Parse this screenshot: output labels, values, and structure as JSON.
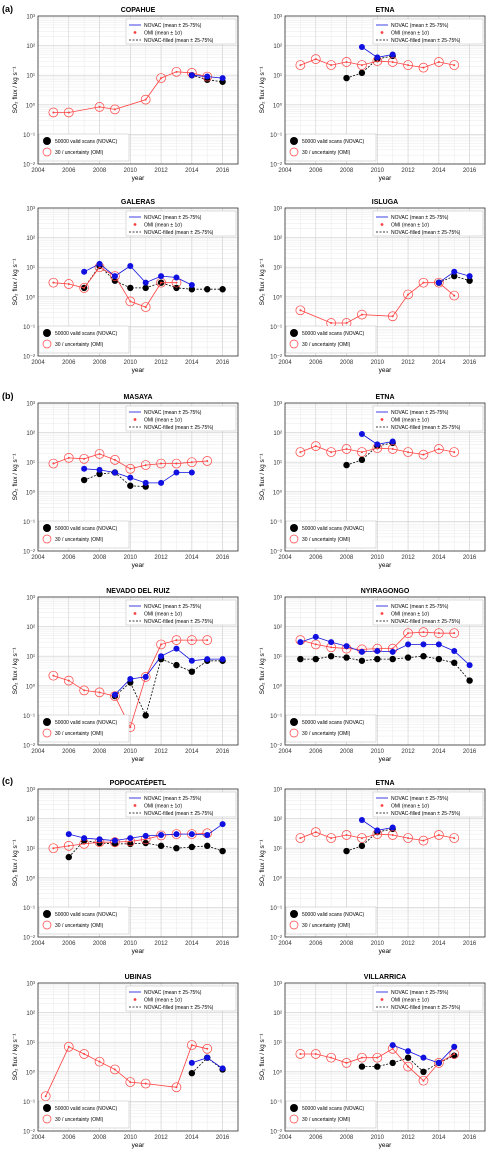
{
  "sections": [
    "(a)",
    "(b)",
    "(c)"
  ],
  "axis_text": {
    "xlabel": "year",
    "ylabel": "SO₂ flux / kg s⁻¹",
    "x_ticks": [
      2004,
      2006,
      2008,
      2010,
      2012,
      2014,
      2016
    ],
    "y_ticks": [
      "10⁻²",
      "10⁻¹",
      "10⁰",
      "10¹",
      "10²",
      "10³"
    ]
  },
  "legend_text": {
    "novac": "NOVAC (mean ± 25-75%)",
    "omi": "OMI (mean ± 1σ)",
    "filled": "NOVAC-filled (mean ± 25-75%)",
    "size_novac": "50000 valid scans (NOVAC)",
    "size_omi": "30 / uncertainty (OMI)"
  },
  "colors": {
    "novac": "#1010e0",
    "omi": "#ff4040",
    "filled": "#000000",
    "grid": "#e4e4e4"
  },
  "chart_data": [
    {
      "type": "scatter",
      "title": "COPAHUE",
      "xlim": [
        2004,
        2017
      ],
      "ylim": [
        0.01,
        1000
      ],
      "yscale": "log",
      "grid": true,
      "legend_position": "top-right",
      "omi": {
        "x": [
          2005,
          2006,
          2008,
          2009,
          2011,
          2012,
          2013,
          2014,
          2015
        ],
        "y": [
          0.55,
          0.55,
          0.85,
          0.7,
          1.5,
          8,
          13,
          12,
          9
        ]
      },
      "novac": {
        "x": [
          2014,
          2015,
          2016
        ],
        "y": [
          10,
          9,
          8
        ]
      },
      "filled": {
        "x": [
          2014,
          2015,
          2016
        ],
        "y": [
          10,
          7,
          6
        ]
      }
    },
    {
      "type": "scatter",
      "title": "ETNA",
      "xlim": [
        2004,
        2017
      ],
      "ylim": [
        0.01,
        1000
      ],
      "yscale": "log",
      "grid": true,
      "legend_position": "top-right",
      "omi": {
        "x": [
          2005,
          2006,
          2007,
          2008,
          2009,
          2010,
          2011,
          2012,
          2013,
          2014,
          2015
        ],
        "y": [
          22,
          35,
          22,
          28,
          22,
          30,
          28,
          22,
          18,
          28,
          22
        ]
      },
      "novac": {
        "x": [
          2009,
          2010,
          2011
        ],
        "y": [
          90,
          40,
          50
        ]
      },
      "filled": {
        "x": [
          2008,
          2009,
          2010,
          2011
        ],
        "y": [
          8,
          12,
          35,
          45
        ]
      }
    },
    {
      "type": "scatter",
      "title": "GALERAS",
      "xlim": [
        2004,
        2017
      ],
      "ylim": [
        0.01,
        1000
      ],
      "yscale": "log",
      "grid": true,
      "legend_position": "top-right",
      "omi": {
        "x": [
          2005,
          2006,
          2007,
          2008,
          2009,
          2010,
          2011,
          2012,
          2013
        ],
        "y": [
          3,
          2.7,
          2,
          10,
          5,
          0.7,
          0.45,
          3,
          3
        ]
      },
      "novac": {
        "x": [
          2007,
          2008,
          2009,
          2010,
          2011,
          2012,
          2013,
          2014
        ],
        "y": [
          7,
          13,
          5,
          11,
          3,
          5,
          4.5,
          2.5
        ]
      },
      "filled": {
        "x": [
          2007,
          2008,
          2009,
          2010,
          2011,
          2012,
          2013,
          2014,
          2015,
          2016
        ],
        "y": [
          2,
          11,
          3.5,
          2,
          2,
          3,
          2,
          1.8,
          1.8,
          1.8
        ]
      }
    },
    {
      "type": "scatter",
      "title": "ISLUGA",
      "xlim": [
        2004,
        2017
      ],
      "ylim": [
        0.01,
        1000
      ],
      "yscale": "log",
      "grid": true,
      "legend_position": "top-right",
      "omi": {
        "x": [
          2005,
          2007,
          2008,
          2009,
          2011,
          2012,
          2013,
          2014,
          2015
        ],
        "y": [
          0.35,
          0.13,
          0.13,
          0.25,
          0.22,
          1.2,
          3,
          3,
          1.1
        ]
      },
      "novac": {
        "x": [
          2014,
          2015,
          2016
        ],
        "y": [
          3,
          7,
          5
        ]
      },
      "filled": {
        "x": [
          2014,
          2015,
          2016
        ],
        "y": [
          3,
          5,
          3.5
        ]
      }
    },
    {
      "type": "scatter",
      "title": "MASAYA",
      "xlim": [
        2004,
        2017
      ],
      "ylim": [
        0.01,
        1000
      ],
      "yscale": "log",
      "grid": true,
      "legend_position": "top-right",
      "omi": {
        "x": [
          2005,
          2006,
          2007,
          2008,
          2009,
          2010,
          2011,
          2012,
          2013,
          2014,
          2015
        ],
        "y": [
          9,
          14,
          13,
          19,
          12,
          6,
          8,
          9,
          9,
          10,
          11
        ]
      },
      "novac": {
        "x": [
          2007,
          2008,
          2009,
          2010,
          2011,
          2012,
          2013,
          2014
        ],
        "y": [
          6,
          5.5,
          4.5,
          3,
          2,
          2,
          4.5,
          4.5
        ]
      },
      "filled": {
        "x": [
          2007,
          2008,
          2009,
          2010,
          2011
        ],
        "y": [
          2.5,
          4,
          4.5,
          1.6,
          1.5
        ]
      }
    },
    {
      "type": "scatter",
      "title": "ETNA",
      "xlim": [
        2004,
        2017
      ],
      "ylim": [
        0.01,
        1000
      ],
      "yscale": "log",
      "grid": true,
      "legend_position": "top-right",
      "omi": {
        "x": [
          2005,
          2006,
          2007,
          2008,
          2009,
          2010,
          2011,
          2012,
          2013,
          2014,
          2015
        ],
        "y": [
          22,
          35,
          22,
          28,
          22,
          30,
          28,
          22,
          18,
          28,
          22
        ]
      },
      "novac": {
        "x": [
          2009,
          2010,
          2011
        ],
        "y": [
          90,
          40,
          50
        ]
      },
      "filled": {
        "x": [
          2008,
          2009,
          2010,
          2011
        ],
        "y": [
          8,
          12,
          35,
          45
        ]
      }
    },
    {
      "type": "scatter",
      "title": "NEVADO DEL RUIZ",
      "xlim": [
        2004,
        2017
      ],
      "ylim": [
        0.01,
        1000
      ],
      "yscale": "log",
      "grid": true,
      "legend_position": "top-right",
      "omi": {
        "x": [
          2005,
          2006,
          2007,
          2008,
          2009,
          2010,
          2011,
          2012,
          2013,
          2014,
          2015
        ],
        "y": [
          2.2,
          1.5,
          0.7,
          0.6,
          0.45,
          0.04,
          2,
          25,
          35,
          35,
          35
        ]
      },
      "novac": {
        "x": [
          2009,
          2010,
          2011,
          2012,
          2013,
          2014,
          2015,
          2016
        ],
        "y": [
          0.5,
          1.7,
          2,
          10,
          18,
          7,
          8,
          8
        ]
      },
      "filled": {
        "x": [
          2009,
          2010,
          2011,
          2012,
          2013,
          2014,
          2015,
          2016
        ],
        "y": [
          0.45,
          1.3,
          0.1,
          8,
          5,
          3,
          7,
          7
        ]
      }
    },
    {
      "type": "scatter",
      "title": "NYIRAGONGO",
      "xlim": [
        2004,
        2017
      ],
      "ylim": [
        0.01,
        1000
      ],
      "yscale": "log",
      "grid": true,
      "legend_position": "top-right",
      "omi": {
        "x": [
          2005,
          2006,
          2007,
          2008,
          2009,
          2010,
          2011,
          2012,
          2013,
          2014,
          2015
        ],
        "y": [
          35,
          25,
          20,
          18,
          17,
          18,
          18,
          60,
          65,
          60,
          60
        ]
      },
      "novac": {
        "x": [
          2005,
          2006,
          2007,
          2008,
          2009,
          2010,
          2011,
          2012,
          2013,
          2014,
          2015,
          2016
        ],
        "y": [
          30,
          45,
          30,
          22,
          14,
          15,
          14,
          25,
          25,
          25,
          15,
          5
        ]
      },
      "filled": {
        "x": [
          2005,
          2006,
          2007,
          2008,
          2009,
          2010,
          2011,
          2012,
          2013,
          2014,
          2015,
          2016
        ],
        "y": [
          8,
          8,
          10,
          9,
          7,
          8,
          8,
          9,
          10,
          8,
          6,
          1.5
        ]
      }
    },
    {
      "type": "scatter",
      "title": "POPOCATÉPETL",
      "xlim": [
        2004,
        2017
      ],
      "ylim": [
        0.01,
        1000
      ],
      "yscale": "log",
      "grid": true,
      "legend_position": "top-right",
      "omi": {
        "x": [
          2005,
          2006,
          2007,
          2008,
          2009,
          2010,
          2011,
          2012,
          2013,
          2014,
          2015
        ],
        "y": [
          10,
          12,
          14,
          16,
          16,
          17,
          20,
          27,
          30,
          30,
          32
        ]
      },
      "novac": {
        "x": [
          2006,
          2007,
          2008,
          2009,
          2010,
          2011,
          2012,
          2013,
          2014,
          2015,
          2016
        ],
        "y": [
          30,
          22,
          20,
          18,
          22,
          26,
          28,
          30,
          30,
          28,
          65
        ]
      },
      "filled": {
        "x": [
          2006,
          2007,
          2008,
          2009,
          2010,
          2011,
          2012,
          2013,
          2014,
          2015,
          2016
        ],
        "y": [
          5,
          18,
          15,
          14,
          14,
          15,
          12,
          10,
          11,
          12,
          8
        ]
      }
    },
    {
      "type": "scatter",
      "title": "ETNA",
      "xlim": [
        2004,
        2017
      ],
      "ylim": [
        0.01,
        1000
      ],
      "yscale": "log",
      "grid": true,
      "legend_position": "top-right",
      "omi": {
        "x": [
          2005,
          2006,
          2007,
          2008,
          2009,
          2010,
          2011,
          2012,
          2013,
          2014,
          2015
        ],
        "y": [
          22,
          35,
          22,
          28,
          22,
          30,
          28,
          22,
          18,
          28,
          22
        ]
      },
      "novac": {
        "x": [
          2009,
          2010,
          2011
        ],
        "y": [
          90,
          40,
          50
        ]
      },
      "filled": {
        "x": [
          2008,
          2009,
          2010,
          2011
        ],
        "y": [
          8,
          12,
          35,
          45
        ]
      }
    },
    {
      "type": "scatter",
      "title": "UBINAS",
      "xlim": [
        2004,
        2017
      ],
      "ylim": [
        0.01,
        1000
      ],
      "yscale": "log",
      "grid": true,
      "legend_position": "top-right",
      "omi": {
        "x": [
          2004.5,
          2006,
          2007,
          2008,
          2009,
          2010,
          2011,
          2013,
          2014,
          2015
        ],
        "y": [
          0.15,
          7,
          4,
          2.2,
          1.2,
          0.45,
          0.4,
          0.3,
          8,
          6
        ]
      },
      "novac": {
        "x": [
          2014,
          2015,
          2016
        ],
        "y": [
          2,
          3,
          1.3
        ]
      },
      "filled": {
        "x": [
          2014,
          2015,
          2016
        ],
        "y": [
          0.9,
          3,
          1.2
        ]
      }
    },
    {
      "type": "scatter",
      "title": "VILLARRICA",
      "xlim": [
        2004,
        2017
      ],
      "ylim": [
        0.01,
        1000
      ],
      "yscale": "log",
      "grid": true,
      "legend_position": "top-right",
      "omi": {
        "x": [
          2005,
          2006,
          2007,
          2008,
          2009,
          2010,
          2011,
          2012,
          2013,
          2014,
          2015
        ],
        "y": [
          4,
          4,
          3,
          2,
          3,
          3,
          6,
          1.5,
          0.5,
          2,
          4
        ]
      },
      "novac": {
        "x": [
          2011,
          2012,
          2013,
          2014,
          2015
        ],
        "y": [
          8,
          5,
          3,
          2,
          7
        ]
      },
      "filled": {
        "x": [
          2009,
          2010,
          2011,
          2012,
          2013,
          2014,
          2015
        ],
        "y": [
          1.5,
          1.5,
          2,
          3,
          1,
          2,
          3.5
        ]
      }
    }
  ]
}
